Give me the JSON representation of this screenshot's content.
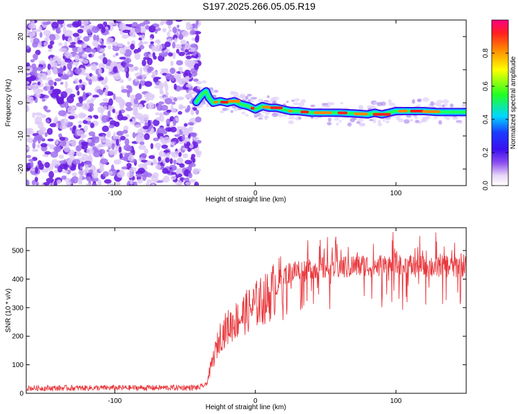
{
  "title": "S197.2025.266.05.05.R19",
  "chart_data": [
    {
      "type": "heatmap",
      "title": "",
      "xlabel": "Height of straight line (km)",
      "ylabel": "Frequency (Hz)",
      "xlim": [
        -163,
        150
      ],
      "ylim": [
        -25,
        25
      ],
      "xticks": [
        -100,
        0,
        100
      ],
      "yticks": [
        -20,
        -10,
        0,
        10,
        20
      ],
      "colorbar": {
        "label": "Normalized spectral amplitude",
        "range": [
          0,
          1
        ],
        "ticks": [
          0.0,
          0.2,
          0.4,
          0.6,
          0.8
        ]
      },
      "noise_region_x": [
        -163,
        -40
      ],
      "signal_trace": {
        "x": [
          -42,
          -38,
          -35,
          -33,
          -30,
          -25,
          -20,
          -15,
          -10,
          -5,
          0,
          5,
          10,
          15,
          20,
          25,
          30,
          40,
          50,
          60,
          70,
          80,
          85,
          90,
          95,
          100,
          110,
          120,
          130,
          140,
          150
        ],
        "y": [
          0.2,
          2.5,
          3.5,
          1.5,
          0.0,
          0.5,
          0.0,
          0.5,
          -0.5,
          -1.0,
          -2.0,
          -1.0,
          -1.5,
          -1.5,
          -2.0,
          -2.5,
          -2.5,
          -3.0,
          -3.0,
          -3.0,
          -3.2,
          -3.5,
          -3.0,
          -3.5,
          -3.0,
          -2.5,
          -2.5,
          -2.5,
          -2.8,
          -2.8,
          -2.8
        ]
      }
    },
    {
      "type": "line",
      "title": "",
      "xlabel": "Height of straight line (km)",
      "ylabel": "SNR (10 * v/v)",
      "xlim": [
        -163,
        150
      ],
      "ylim": [
        0,
        580
      ],
      "xticks": [
        -100,
        0,
        100
      ],
      "yticks": [
        0,
        100,
        200,
        300,
        400,
        500
      ],
      "series": [
        {
          "name": "SNR",
          "color": "#e8373c",
          "envelope": {
            "x": [
              -163,
              -40,
              -35,
              -30,
              -25,
              -20,
              -15,
              -10,
              -5,
              0,
              10,
              15,
              20,
              30,
              50,
              70,
              100,
              130,
              150
            ],
            "y": [
              18,
              20,
              30,
              120,
              200,
              230,
              250,
              270,
              290,
              310,
              340,
              380,
              410,
              430,
              440,
              445,
              445,
              445,
              445
            ]
          }
        }
      ]
    }
  ]
}
